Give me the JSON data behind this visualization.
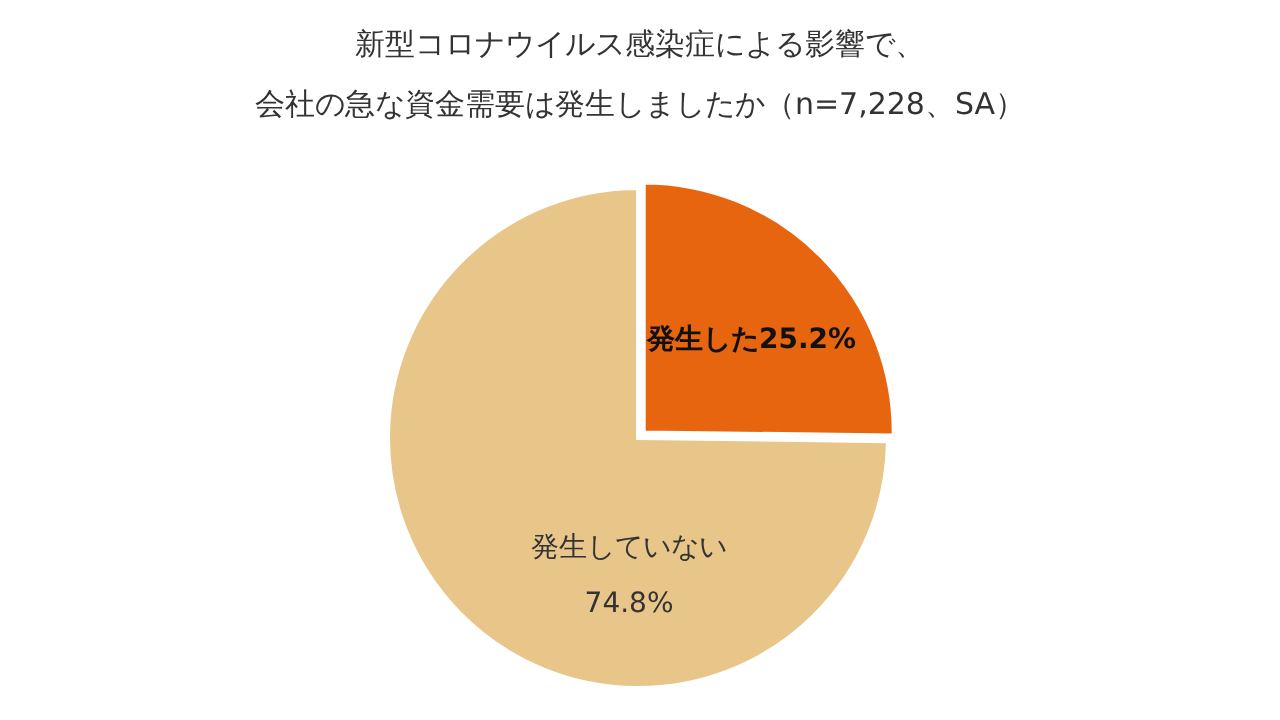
{
  "chart_data": {
    "type": "pie",
    "title": "新型コロナウイルス感染症による影響で、",
    "subtitle": "会社の急な資金需要は発生しましたか（n=7,228、SA）",
    "categories": [
      "発生した",
      "発生していない"
    ],
    "values": [
      25.2,
      74.8
    ],
    "colors": [
      "#e8650f",
      "#e8c68a"
    ],
    "value_labels": [
      "25.2%",
      "74.8%"
    ]
  }
}
